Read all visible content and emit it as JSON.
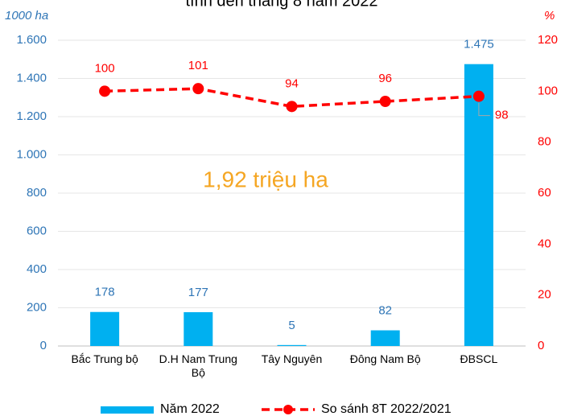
{
  "chart_data": {
    "type": "bar",
    "title": "tính đến tháng 8 năm 2022",
    "ylabel": "1000 ha",
    "y2label": "%",
    "annotation": "1,92 triệu ha",
    "categories": [
      "Bắc Trung bộ",
      "D.H Nam Trung Bộ",
      "Tây Nguyên",
      "Đông Nam Bộ",
      "ĐBSCL"
    ],
    "series": [
      {
        "name": "Năm 2022",
        "type": "bar",
        "color": "#00b0f0",
        "values": [
          178,
          177,
          5,
          82,
          1475
        ],
        "value_labels": [
          "178",
          "177",
          "5",
          "82",
          "1.475"
        ]
      },
      {
        "name": "So sánh 8T 2022/2021",
        "type": "line",
        "color": "#ff0000",
        "axis": "y2",
        "values": [
          100,
          101,
          94,
          96,
          98
        ]
      }
    ],
    "ylim": [
      0,
      1600
    ],
    "yticks": [
      0,
      200,
      400,
      600,
      800,
      {
        "value": 1000,
        "label": "1.000"
      },
      {
        "value": 1200,
        "label": "1.200"
      },
      {
        "value": 1400,
        "label": "1.400"
      },
      {
        "value": 1600,
        "label": "1.600"
      }
    ],
    "y2lim": [
      0,
      120
    ],
    "y2ticks": [
      0,
      20,
      40,
      60,
      80,
      100,
      120
    ],
    "grid": true
  }
}
